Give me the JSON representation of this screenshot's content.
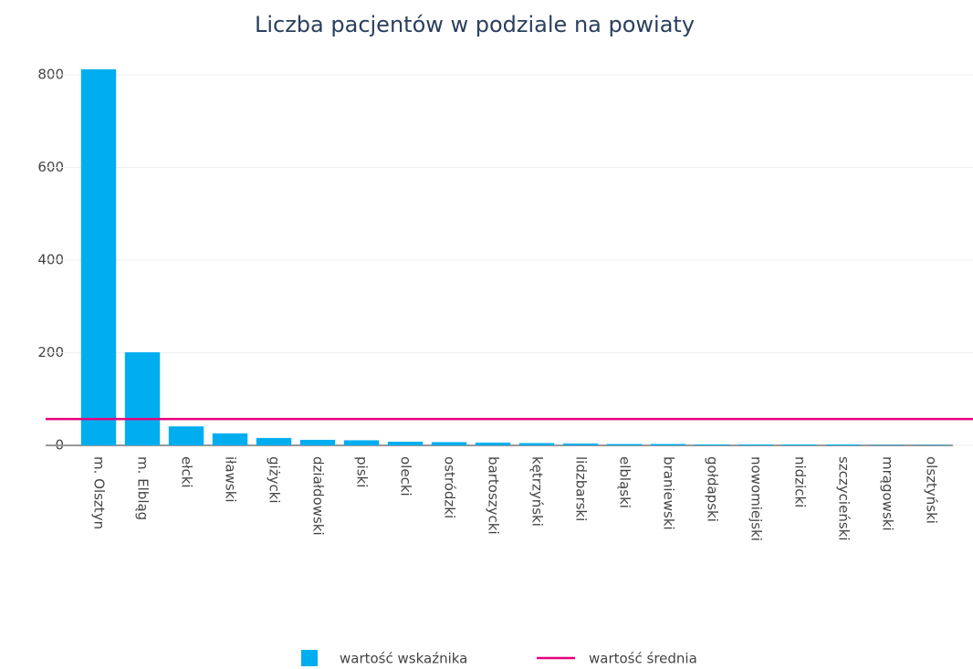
{
  "chart_data": {
    "type": "bar",
    "title": "Liczba pacjentów w podziale na powiaty",
    "categories": [
      "m. Olsztyn",
      "m. Elbląg",
      "ełcki",
      "iławski",
      "giżycki",
      "działdowski",
      "piski",
      "olecki",
      "ostródzki",
      "bartoszycki",
      "kętrzyński",
      "lidzbarski",
      "elbląski",
      "braniewski",
      "gołdapski",
      "nowomiejski",
      "nidzicki",
      "szczycieński",
      "mrągowski",
      "olsztyński"
    ],
    "series": [
      {
        "name": "wartość wskaźnika",
        "color": "#00aeef",
        "values": [
          812,
          201,
          41,
          26,
          16,
          12,
          11,
          8,
          7,
          6,
          5,
          4,
          3,
          3,
          2,
          2,
          2,
          2,
          1,
          1
        ]
      },
      {
        "name": "wartość średnia",
        "color": "#e6007e",
        "value": 57
      }
    ],
    "ylim": [
      0,
      850
    ],
    "yticks": [
      0,
      200,
      400,
      600,
      800
    ],
    "grid": true
  }
}
